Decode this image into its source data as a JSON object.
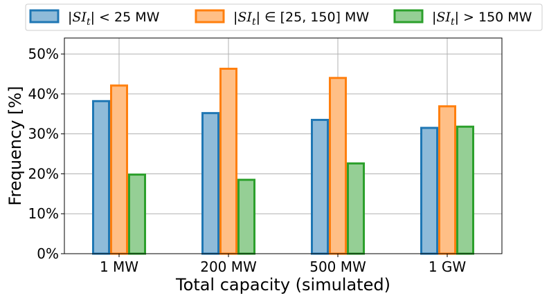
{
  "chart_data": {
    "type": "bar",
    "categories": [
      "1 MW",
      "200 MW",
      "500 MW",
      "1 GW"
    ],
    "series": [
      {
        "name": "|SI_t| < 25 MW",
        "legend_parts": [
          "|",
          "SI",
          "t",
          "| < 25 MW"
        ],
        "values": [
          38.2,
          35.2,
          33.5,
          31.5
        ],
        "edge": "#1f77b4",
        "fill": "#8fbbd9"
      },
      {
        "name": "|SI_t| ∈ [25, 150] MW",
        "legend_parts": [
          "|",
          "SI",
          "t",
          "| ∈ [25, 150] MW"
        ],
        "values": [
          42.1,
          46.3,
          44.0,
          36.9
        ],
        "edge": "#ff7f0e",
        "fill": "#ffbf86"
      },
      {
        "name": "|SI_t| > 150 MW",
        "legend_parts": [
          "|",
          "SI",
          "t",
          "| > 150 MW"
        ],
        "values": [
          19.8,
          18.5,
          22.6,
          31.8
        ],
        "edge": "#2ca02c",
        "fill": "#95cf95"
      }
    ],
    "xlabel": "Total capacity (simulated)",
    "ylabel": "Frequency [%]",
    "ylim": [
      0,
      54
    ],
    "yticks": [
      0,
      10,
      20,
      30,
      40,
      50
    ],
    "ytick_labels": [
      "0%",
      "10%",
      "20%",
      "30%",
      "40%",
      "50%"
    ],
    "grid": true,
    "legend_position": "top"
  }
}
